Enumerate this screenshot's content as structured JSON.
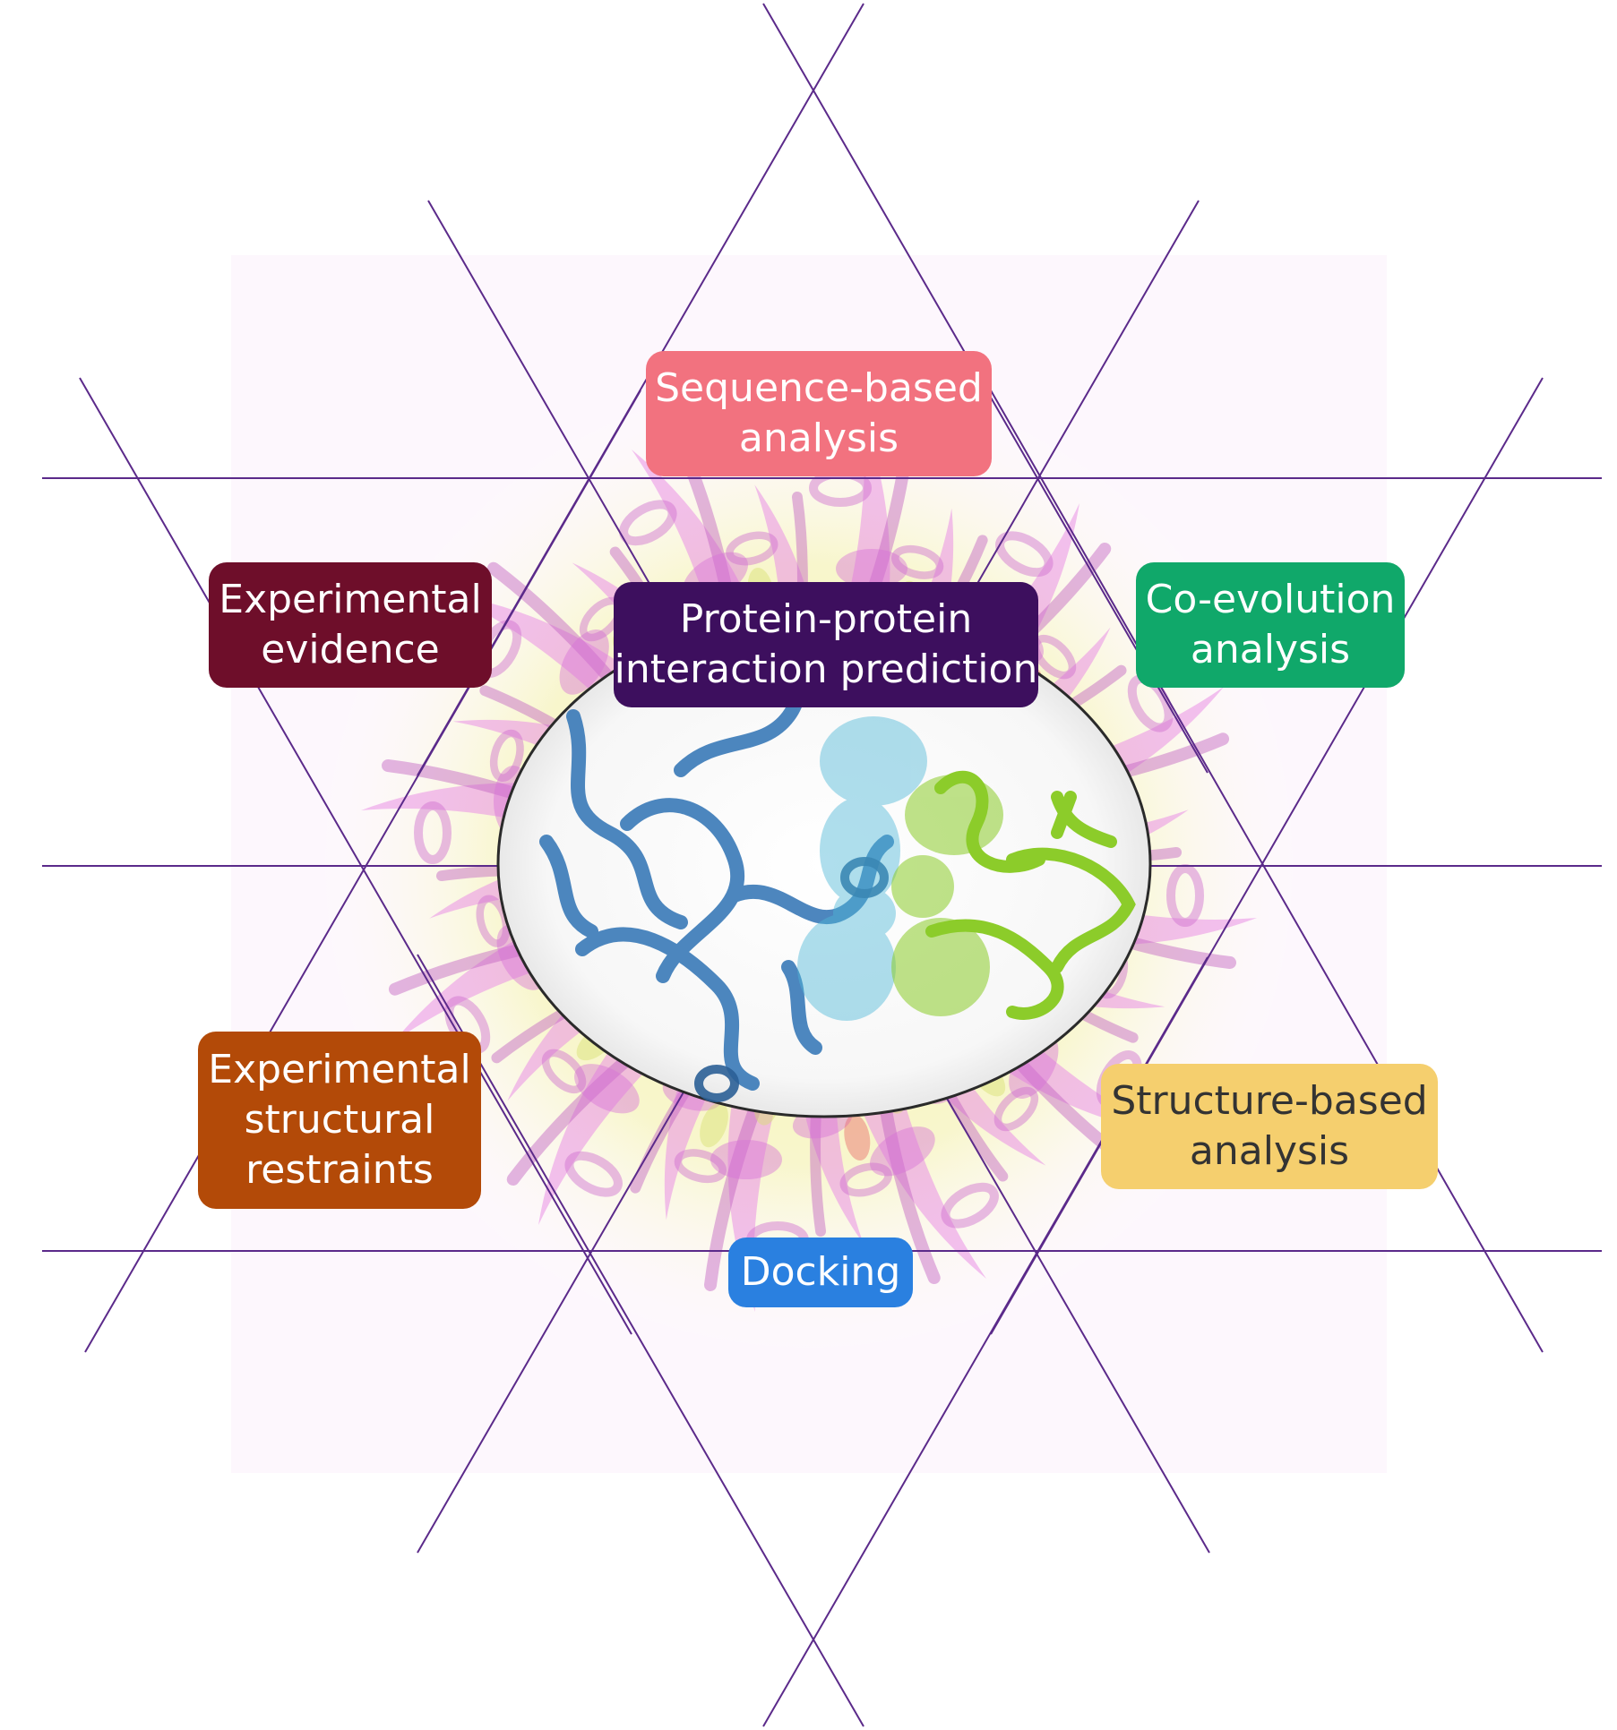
{
  "center": {
    "label": "Protein-protein\ninteraction prediction",
    "color": "#3d0f5e",
    "text_color": "#ffffff"
  },
  "methods": [
    {
      "id": "sequence",
      "label": "Sequence-based\nanalysis",
      "color": "#f2727f",
      "text_color": "#ffffff"
    },
    {
      "id": "experimental",
      "label": "Experimental\nevidence",
      "color": "#6e0e2a",
      "text_color": "#ffffff"
    },
    {
      "id": "coevolution",
      "label": "Co-evolution\nanalysis",
      "color": "#10a86a",
      "text_color": "#ffffff"
    },
    {
      "id": "restraints",
      "label": "Experimental\nstructural\nrestraints",
      "color": "#b34a08",
      "text_color": "#ffffff"
    },
    {
      "id": "structure",
      "label": "Structure-based\nanalysis",
      "color": "#f5cf6e",
      "text_color": "#333333"
    },
    {
      "id": "docking",
      "label": "Docking",
      "color": "#2a80e0",
      "text_color": "#ffffff"
    }
  ],
  "colors": {
    "star_lines": "#5b2a8a",
    "background_ribbons": "#e58fe3",
    "background_glow": "#f2f29a",
    "protein_a": "#3a7ab8",
    "protein_a_surface": "#4fb8d8",
    "protein_b": "#8ccc2a",
    "ellipse_border": "#2a2a2a"
  },
  "icons": {
    "background": "protein-ribbon-mandala-icon",
    "center": "protein-complex-icon"
  }
}
